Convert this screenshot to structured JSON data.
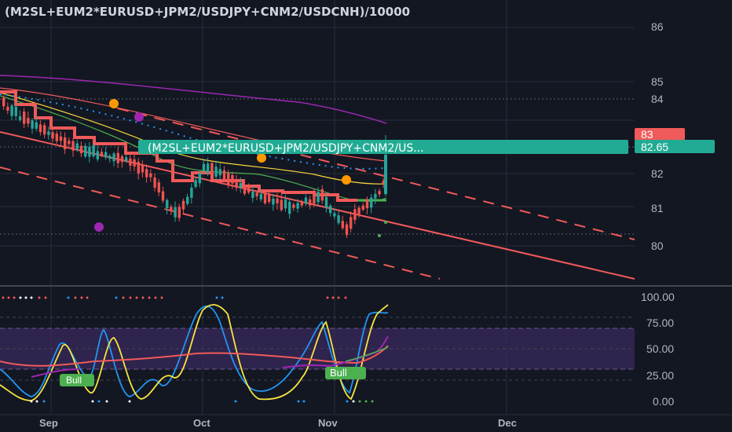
{
  "header": {
    "symbol_title": "(M2SL+EUM2*EURUSD+JPM2/USDJPY+CNM2/USDCNH)/10000"
  },
  "price_pane": {
    "y_ticks": [
      "86",
      "85",
      "84",
      "83",
      "82",
      "81",
      "80"
    ],
    "last_price_label": "(M2SL+EUM2*EURUSD+JPM2/USDJPY+CNM2/US...",
    "last_price": "82.65",
    "marker_83": "83",
    "colors": {
      "up": "#26a69a",
      "down": "#ef5350",
      "label_bg": "#22ab94"
    }
  },
  "oscillator_pane": {
    "y_ticks": [
      "100.00",
      "75.00",
      "50.00",
      "25.00",
      "0.00"
    ],
    "bull_labels": [
      "Bull",
      "Bull"
    ]
  },
  "time_axis": {
    "labels": [
      "Sep",
      "Oct",
      "Nov",
      "Dec"
    ]
  },
  "chart_data": {
    "type": "candlestick",
    "x_axis_labels": [
      "Sep",
      "Oct",
      "Nov",
      "Dec"
    ],
    "price_axis_ticks": [
      86,
      85,
      84,
      83,
      82,
      81,
      80
    ],
    "price_range": [
      79.2,
      86.3
    ],
    "last_price": 82.65,
    "oscillator_axis_ticks": [
      100,
      75,
      50,
      25,
      0
    ],
    "oscillator_range": [
      0,
      100
    ]
  }
}
